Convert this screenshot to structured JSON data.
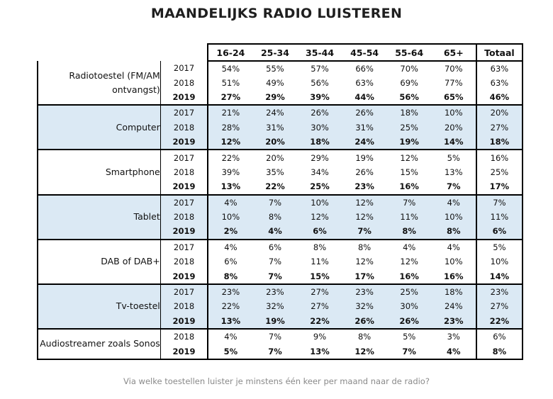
{
  "chart_data": {
    "type": "table",
    "title": "MAANDELIJKS RADIO LUISTEREN",
    "footnote": "Via welke toestellen luister je minstens één keer per maand naar de radio?",
    "columns": [
      "16-24",
      "25-34",
      "35-44",
      "45-54",
      "55-64",
      "65+",
      "Totaal"
    ],
    "groups": [
      {
        "device": "Radiotoestel (FM/AM ontvangst)",
        "shaded": false,
        "rows": [
          {
            "year": "2017",
            "values": [
              "54%",
              "55%",
              "57%",
              "66%",
              "70%",
              "70%",
              "63%"
            ]
          },
          {
            "year": "2018",
            "values": [
              "51%",
              "49%",
              "56%",
              "63%",
              "69%",
              "77%",
              "63%"
            ]
          },
          {
            "year": "2019",
            "values": [
              "27%",
              "29%",
              "39%",
              "44%",
              "56%",
              "65%",
              "46%"
            ]
          }
        ]
      },
      {
        "device": "Computer",
        "shaded": true,
        "rows": [
          {
            "year": "2017",
            "values": [
              "21%",
              "24%",
              "26%",
              "26%",
              "18%",
              "10%",
              "20%"
            ]
          },
          {
            "year": "2018",
            "values": [
              "28%",
              "31%",
              "30%",
              "31%",
              "25%",
              "20%",
              "27%"
            ]
          },
          {
            "year": "2019",
            "values": [
              "12%",
              "20%",
              "18%",
              "24%",
              "19%",
              "14%",
              "18%"
            ]
          }
        ]
      },
      {
        "device": "Smartphone",
        "shaded": false,
        "rows": [
          {
            "year": "2017",
            "values": [
              "22%",
              "20%",
              "29%",
              "19%",
              "12%",
              "5%",
              "16%"
            ]
          },
          {
            "year": "2018",
            "values": [
              "39%",
              "35%",
              "34%",
              "26%",
              "15%",
              "13%",
              "25%"
            ]
          },
          {
            "year": "2019",
            "values": [
              "13%",
              "22%",
              "25%",
              "23%",
              "16%",
              "7%",
              "17%"
            ]
          }
        ]
      },
      {
        "device": "Tablet",
        "shaded": true,
        "rows": [
          {
            "year": "2017",
            "values": [
              "4%",
              "7%",
              "10%",
              "12%",
              "7%",
              "4%",
              "7%"
            ]
          },
          {
            "year": "2018",
            "values": [
              "10%",
              "8%",
              "12%",
              "12%",
              "11%",
              "10%",
              "11%"
            ]
          },
          {
            "year": "2019",
            "values": [
              "2%",
              "4%",
              "6%",
              "7%",
              "8%",
              "8%",
              "6%"
            ]
          }
        ]
      },
      {
        "device": "DAB of DAB+",
        "shaded": false,
        "rows": [
          {
            "year": "2017",
            "values": [
              "4%",
              "6%",
              "8%",
              "8%",
              "4%",
              "4%",
              "5%"
            ]
          },
          {
            "year": "2018",
            "values": [
              "6%",
              "7%",
              "11%",
              "12%",
              "12%",
              "10%",
              "10%"
            ]
          },
          {
            "year": "2019",
            "values": [
              "8%",
              "7%",
              "15%",
              "17%",
              "16%",
              "16%",
              "14%"
            ]
          }
        ]
      },
      {
        "device": "Tv-toestel",
        "shaded": true,
        "rows": [
          {
            "year": "2017",
            "values": [
              "23%",
              "23%",
              "27%",
              "23%",
              "25%",
              "18%",
              "23%"
            ]
          },
          {
            "year": "2018",
            "values": [
              "22%",
              "32%",
              "27%",
              "32%",
              "30%",
              "24%",
              "27%"
            ]
          },
          {
            "year": "2019",
            "values": [
              "13%",
              "19%",
              "22%",
              "26%",
              "26%",
              "23%",
              "22%"
            ]
          }
        ]
      },
      {
        "device": "Audiostreamer zoals Sonos",
        "shaded": false,
        "rows": [
          {
            "year": "2018",
            "values": [
              "4%",
              "7%",
              "9%",
              "8%",
              "5%",
              "3%",
              "6%"
            ]
          },
          {
            "year": "2019",
            "values": [
              "5%",
              "7%",
              "13%",
              "12%",
              "7%",
              "4%",
              "8%"
            ]
          }
        ]
      }
    ],
    "shade_color": "#dbe9f4"
  }
}
